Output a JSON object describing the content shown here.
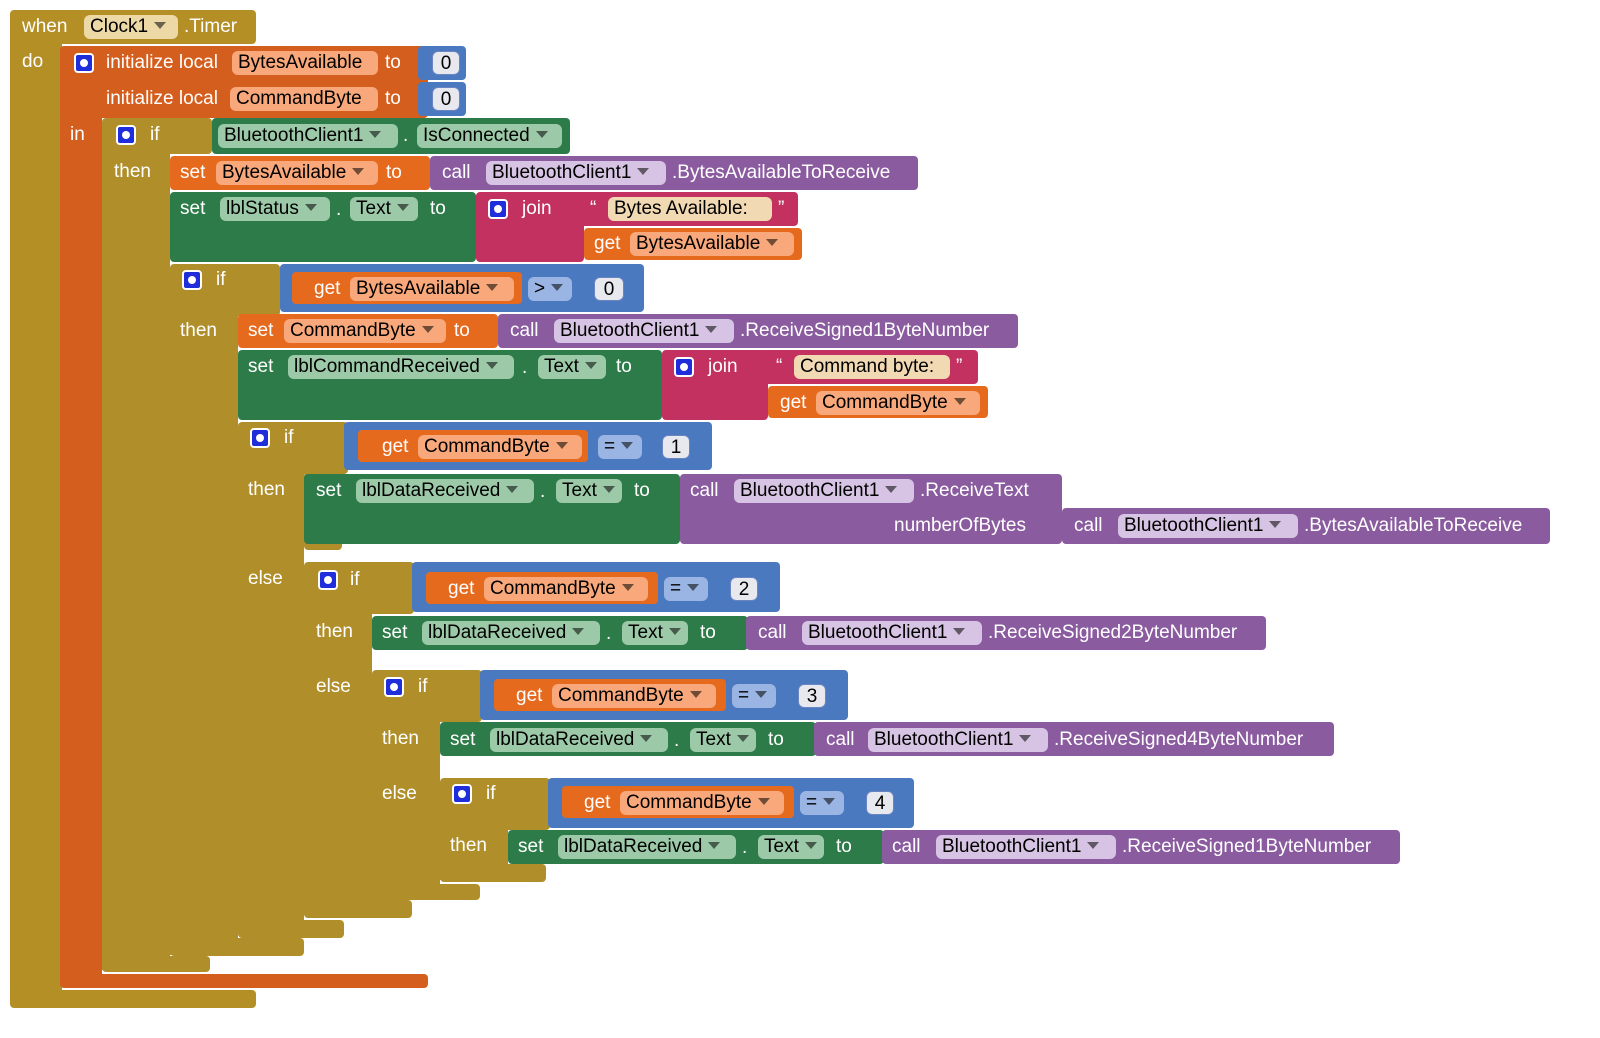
{
  "event": {
    "when": "when",
    "component": "Clock1",
    "name": ".Timer",
    "do": "do"
  },
  "locals": {
    "init": "initialize local",
    "var1": "BytesAvailable",
    "var2": "CommandByte",
    "to": "to",
    "zero": "0",
    "in": "in"
  },
  "kw": {
    "if": "if",
    "then": "then",
    "else": "else",
    "set": "set",
    "get": "get",
    "to": "to",
    "call": "call",
    "join": "join",
    "dot": ".",
    "open_quote": "“",
    "close_quote": "”"
  },
  "comp": {
    "bt": "BluetoothClient1",
    "is_connected": "IsConnected",
    "lbl_status": "lblStatus",
    "lbl_cmd": "lblCommandReceived",
    "lbl_data": "lblDataReceived",
    "text_prop": "Text"
  },
  "vars": {
    "bytes": "BytesAvailable",
    "cmd": "CommandByte"
  },
  "methods": {
    "bytes_to_receive": ".BytesAvailableToReceive",
    "recv1": ".ReceiveSigned1ByteNumber",
    "recv2": ".ReceiveSigned2ByteNumber",
    "recv4": ".ReceiveSigned4ByteNumber",
    "recv_text": ".ReceiveText",
    "num_bytes": "numberOfBytes"
  },
  "strings": {
    "bytes_avail": "Bytes Available:",
    "cmd_byte": "Command byte:"
  },
  "ops": {
    "gt": ">",
    "eq": "="
  },
  "nums": {
    "zero": "0",
    "one": "1",
    "two": "2",
    "three": "3",
    "four": "4"
  },
  "colors": {
    "event": "#b38f26",
    "local": "#d45e1d",
    "control": "#b08f2a",
    "variable": "#e66a1e",
    "component": "#2e7b4a",
    "method": "#8a5b9f",
    "text": "#c2315f",
    "math": "#4a79bf"
  }
}
